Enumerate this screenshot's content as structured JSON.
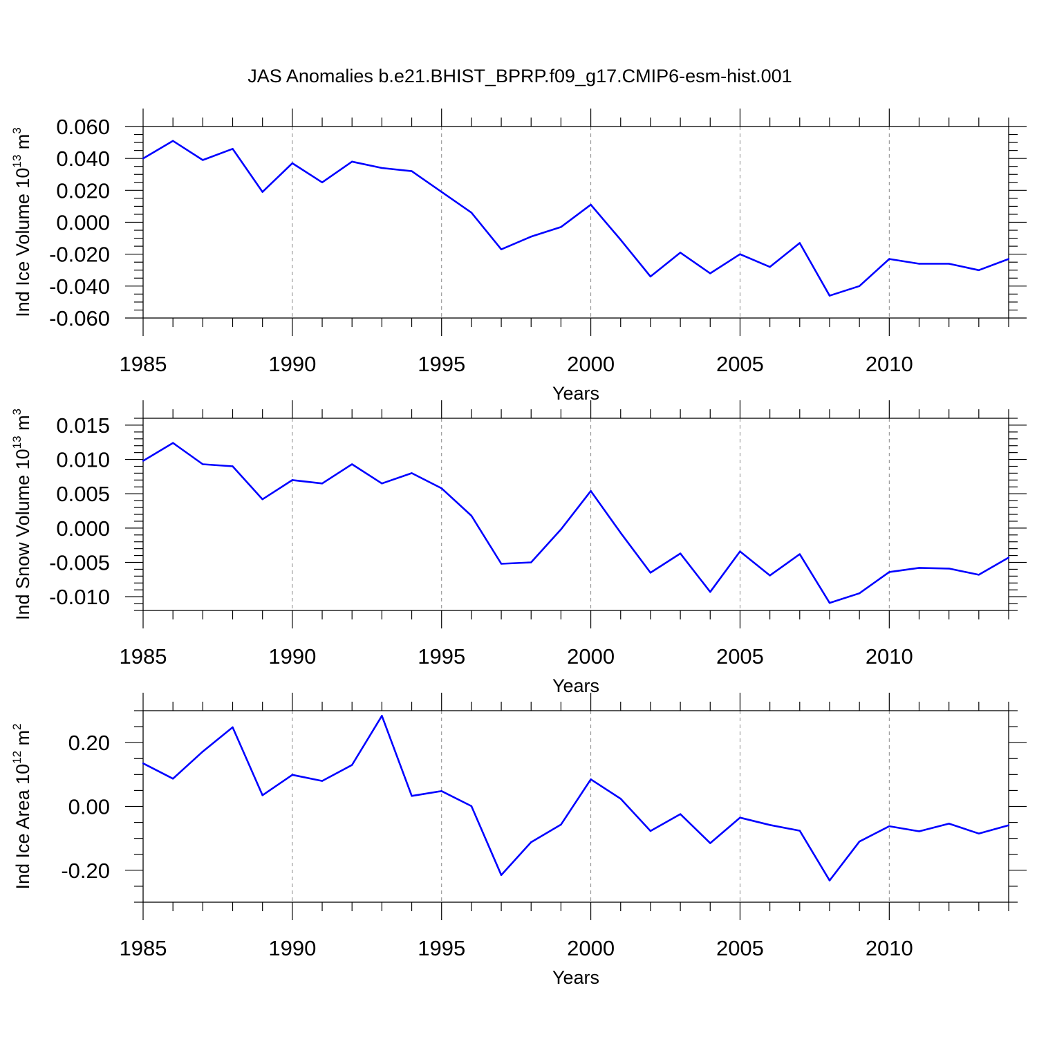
{
  "title": "JAS Anomalies b.e21.BHIST_BPRP.f09_g17.CMIP6-esm-hist.001",
  "line_color": "#0000ff",
  "chart_data": [
    {
      "type": "line",
      "ylabel": "Ind Ice Volume 10",
      "ylabel_exp": "13",
      "ylabel_unit": " m",
      "ylabel_unit_exp": "3",
      "xlabel": "Years",
      "xlim": [
        1985,
        2014
      ],
      "ylim": [
        -0.06,
        0.06
      ],
      "xticks": [
        "1985",
        "1990",
        "1995",
        "2000",
        "2005",
        "2010"
      ],
      "xtick_values": [
        1985,
        1990,
        1995,
        2000,
        2005,
        2010
      ],
      "yticks": [
        "0.060",
        "0.040",
        "0.020",
        "0.000",
        "-0.020",
        "-0.040",
        "-0.060"
      ],
      "ytick_values": [
        0.06,
        0.04,
        0.02,
        0.0,
        -0.02,
        -0.04,
        -0.06
      ],
      "yminor_step": 0.005,
      "x": [
        1985,
        1986,
        1987,
        1988,
        1989,
        1990,
        1991,
        1992,
        1993,
        1994,
        1995,
        1996,
        1997,
        1998,
        1999,
        2000,
        2001,
        2002,
        2003,
        2004,
        2005,
        2006,
        2007,
        2008,
        2009,
        2010,
        2011,
        2012,
        2013,
        2014
      ],
      "series": [
        {
          "values": [
            0.04,
            0.051,
            0.039,
            0.046,
            0.019,
            0.037,
            0.025,
            0.038,
            0.034,
            0.032,
            0.019,
            0.006,
            -0.017,
            -0.009,
            -0.003,
            0.011,
            -0.011,
            -0.034,
            -0.019,
            -0.032,
            -0.02,
            -0.028,
            -0.013,
            -0.046,
            -0.04,
            -0.023,
            -0.026,
            -0.026,
            -0.03,
            -0.023
          ]
        }
      ]
    },
    {
      "type": "line",
      "ylabel": "Ind Snow Volume 10",
      "ylabel_exp": "13",
      "ylabel_unit": " m",
      "ylabel_unit_exp": "3",
      "xlabel": "Years",
      "xlim": [
        1985,
        2014
      ],
      "ylim": [
        -0.012,
        0.016
      ],
      "xticks": [
        "1985",
        "1990",
        "1995",
        "2000",
        "2005",
        "2010"
      ],
      "xtick_values": [
        1985,
        1990,
        1995,
        2000,
        2005,
        2010
      ],
      "yticks": [
        "0.015",
        "0.010",
        "0.005",
        "0.000",
        "-0.005",
        "-0.010"
      ],
      "ytick_values": [
        0.015,
        0.01,
        0.005,
        0.0,
        -0.005,
        -0.01
      ],
      "yminor_step": 0.001,
      "x": [
        1985,
        1986,
        1987,
        1988,
        1989,
        1990,
        1991,
        1992,
        1993,
        1994,
        1995,
        1996,
        1997,
        1998,
        1999,
        2000,
        2001,
        2002,
        2003,
        2004,
        2005,
        2006,
        2007,
        2008,
        2009,
        2010,
        2011,
        2012,
        2013,
        2014
      ],
      "series": [
        {
          "values": [
            0.0098,
            0.0124,
            0.0093,
            0.009,
            0.0042,
            0.007,
            0.0065,
            0.0093,
            0.0065,
            0.008,
            0.0058,
            0.0018,
            -0.0052,
            -0.005,
            -0.0002,
            0.0054,
            -0.0007,
            -0.0065,
            -0.0037,
            -0.0093,
            -0.0034,
            -0.0069,
            -0.0038,
            -0.0109,
            -0.0095,
            -0.0064,
            -0.0058,
            -0.0059,
            -0.0068,
            -0.0043
          ]
        }
      ]
    },
    {
      "type": "line",
      "ylabel": "Ind Ice Area 10",
      "ylabel_exp": "12",
      "ylabel_unit": " m",
      "ylabel_unit_exp": "2",
      "xlabel": "Years",
      "xlim": [
        1985,
        2014
      ],
      "ylim": [
        -0.3,
        0.3
      ],
      "xticks": [
        "1985",
        "1990",
        "1995",
        "2000",
        "2005",
        "2010"
      ],
      "xtick_values": [
        1985,
        1990,
        1995,
        2000,
        2005,
        2010
      ],
      "yticks": [
        "0.20",
        "0.00",
        "-0.20"
      ],
      "ytick_values": [
        0.2,
        0.0,
        -0.2
      ],
      "yminor_step": 0.05,
      "x": [
        1985,
        1986,
        1987,
        1988,
        1989,
        1990,
        1991,
        1992,
        1993,
        1994,
        1995,
        1996,
        1997,
        1998,
        1999,
        2000,
        2001,
        2002,
        2003,
        2004,
        2005,
        2006,
        2007,
        2008,
        2009,
        2010,
        2011,
        2012,
        2013,
        2014
      ],
      "series": [
        {
          "values": [
            0.135,
            0.087,
            0.172,
            0.248,
            0.035,
            0.099,
            0.08,
            0.13,
            0.284,
            0.033,
            0.048,
            0.001,
            -0.215,
            -0.112,
            -0.057,
            0.085,
            0.024,
            -0.077,
            -0.024,
            -0.115,
            -0.035,
            -0.058,
            -0.076,
            -0.232,
            -0.11,
            -0.062,
            -0.078,
            -0.054,
            -0.085,
            -0.059
          ]
        }
      ]
    }
  ]
}
